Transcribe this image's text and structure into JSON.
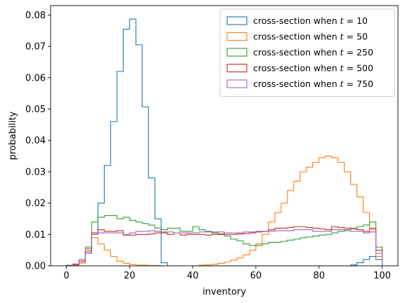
{
  "chart_data": {
    "type": "histogram-step",
    "xlabel": "inventory",
    "ylabel": "probability",
    "xlim": [
      -5,
      105
    ],
    "ylim": [
      0,
      0.083
    ],
    "xticks": [
      0,
      20,
      40,
      60,
      80,
      100
    ],
    "yticks": [
      0.0,
      0.01,
      0.02,
      0.03,
      0.04,
      0.05,
      0.06,
      0.07,
      0.08
    ],
    "xtick_labels": [
      "0",
      "20",
      "40",
      "60",
      "80",
      "100"
    ],
    "ytick_labels": [
      "0.00",
      "0.01",
      "0.02",
      "0.03",
      "0.04",
      "0.05",
      "0.06",
      "0.07",
      "0.08"
    ],
    "legend_position": "top-right",
    "bin_edges": [
      0,
      2,
      4,
      6,
      8,
      10,
      12,
      14,
      16,
      18,
      20,
      22,
      24,
      26,
      28,
      30,
      32,
      34,
      36,
      38,
      40,
      42,
      44,
      46,
      48,
      50,
      52,
      54,
      56,
      58,
      60,
      62,
      64,
      66,
      68,
      70,
      72,
      74,
      76,
      78,
      80,
      82,
      84,
      86,
      88,
      90,
      92,
      94,
      96,
      98,
      100
    ],
    "series": [
      {
        "name": "cross-section when t = 10",
        "legend_prefix": "cross-section when ",
        "legend_var": "t",
        "legend_suffix": " = 10",
        "color": "#1f77b4",
        "values": [
          0,
          0.0002,
          0.001,
          0.004,
          0.01,
          0.02,
          0.032,
          0.046,
          0.062,
          0.0755,
          0.0787,
          0.0705,
          0.0507,
          0.028,
          0.015,
          0.001,
          0,
          0,
          0,
          0,
          0,
          0,
          0,
          0,
          0,
          0,
          0,
          0,
          0,
          0,
          0,
          0,
          0,
          0,
          0,
          0,
          0,
          0,
          0,
          0,
          0,
          0,
          0,
          0,
          0,
          0.0003,
          0.001,
          0.002,
          0.003,
          0.002
        ]
      },
      {
        "name": "cross-section when t = 50",
        "legend_prefix": "cross-section when ",
        "legend_var": "t",
        "legend_suffix": " = 50",
        "color": "#ff7f0e",
        "values": [
          0.0001,
          0.0002,
          0.0009,
          0.005,
          0.009,
          0.007,
          0.005,
          0.003,
          0.0015,
          0.0008,
          0.0004,
          0.0002,
          0.0002,
          0.0001,
          0.0001,
          0,
          0,
          0,
          0,
          0,
          0,
          0.0002,
          0.0003,
          0.0005,
          0.0008,
          0.0012,
          0.0018,
          0.0025,
          0.0035,
          0.005,
          0.007,
          0.01,
          0.014,
          0.017,
          0.02,
          0.024,
          0.027,
          0.03,
          0.0315,
          0.033,
          0.0345,
          0.035,
          0.0345,
          0.033,
          0.03,
          0.026,
          0.022,
          0.017,
          0.012,
          0.003
        ]
      },
      {
        "name": "cross-section when t = 250",
        "legend_prefix": "cross-section when ",
        "legend_var": "t",
        "legend_suffix": " = 250",
        "color": "#2ca02c",
        "values": [
          0.0002,
          0.0005,
          0.002,
          0.006,
          0.014,
          0.0155,
          0.016,
          0.016,
          0.015,
          0.0155,
          0.0145,
          0.014,
          0.0135,
          0.013,
          0.012,
          0.0115,
          0.012,
          0.012,
          0.011,
          0.011,
          0.0125,
          0.0115,
          0.011,
          0.0105,
          0.01,
          0.0095,
          0.0085,
          0.008,
          0.007,
          0.0065,
          0.0065,
          0.007,
          0.0075,
          0.0075,
          0.0078,
          0.0082,
          0.0085,
          0.009,
          0.0092,
          0.0095,
          0.0098,
          0.01,
          0.0105,
          0.011,
          0.0115,
          0.012,
          0.0125,
          0.013,
          0.014,
          0.006
        ]
      },
      {
        "name": "cross-section when t = 500",
        "legend_prefix": "cross-section when ",
        "legend_var": "t",
        "legend_suffix": " = 500",
        "color": "#d62728",
        "values": [
          0.0001,
          0.0004,
          0.0015,
          0.0045,
          0.0105,
          0.0115,
          0.011,
          0.011,
          0.0112,
          0.0098,
          0.0098,
          0.01,
          0.01,
          0.0102,
          0.0105,
          0.0105,
          0.01,
          0.0105,
          0.0098,
          0.01,
          0.01,
          0.01,
          0.0098,
          0.01,
          0.0102,
          0.01,
          0.01,
          0.0102,
          0.0103,
          0.0105,
          0.0108,
          0.011,
          0.0115,
          0.012,
          0.012,
          0.0122,
          0.0125,
          0.0125,
          0.0122,
          0.012,
          0.0118,
          0.0115,
          0.0125,
          0.0122,
          0.012,
          0.0118,
          0.0115,
          0.011,
          0.0118,
          0.005
        ]
      },
      {
        "name": "cross-section when t = 750",
        "legend_prefix": "cross-section when ",
        "legend_var": "t",
        "legend_suffix": " = 750",
        "color": "#9467bd",
        "values": [
          0.0002,
          0.0006,
          0.002,
          0.0055,
          0.01,
          0.0105,
          0.0105,
          0.0105,
          0.0105,
          0.01,
          0.0105,
          0.011,
          0.011,
          0.0112,
          0.011,
          0.0108,
          0.0108,
          0.0105,
          0.0105,
          0.0105,
          0.0105,
          0.0108,
          0.0108,
          0.0108,
          0.0108,
          0.0105,
          0.0105,
          0.0105,
          0.0108,
          0.0108,
          0.011,
          0.011,
          0.011,
          0.0112,
          0.0112,
          0.0112,
          0.0115,
          0.0115,
          0.0115,
          0.011,
          0.011,
          0.011,
          0.0115,
          0.0115,
          0.0112,
          0.011,
          0.011,
          0.0105,
          0.0108,
          0.004
        ]
      }
    ]
  }
}
